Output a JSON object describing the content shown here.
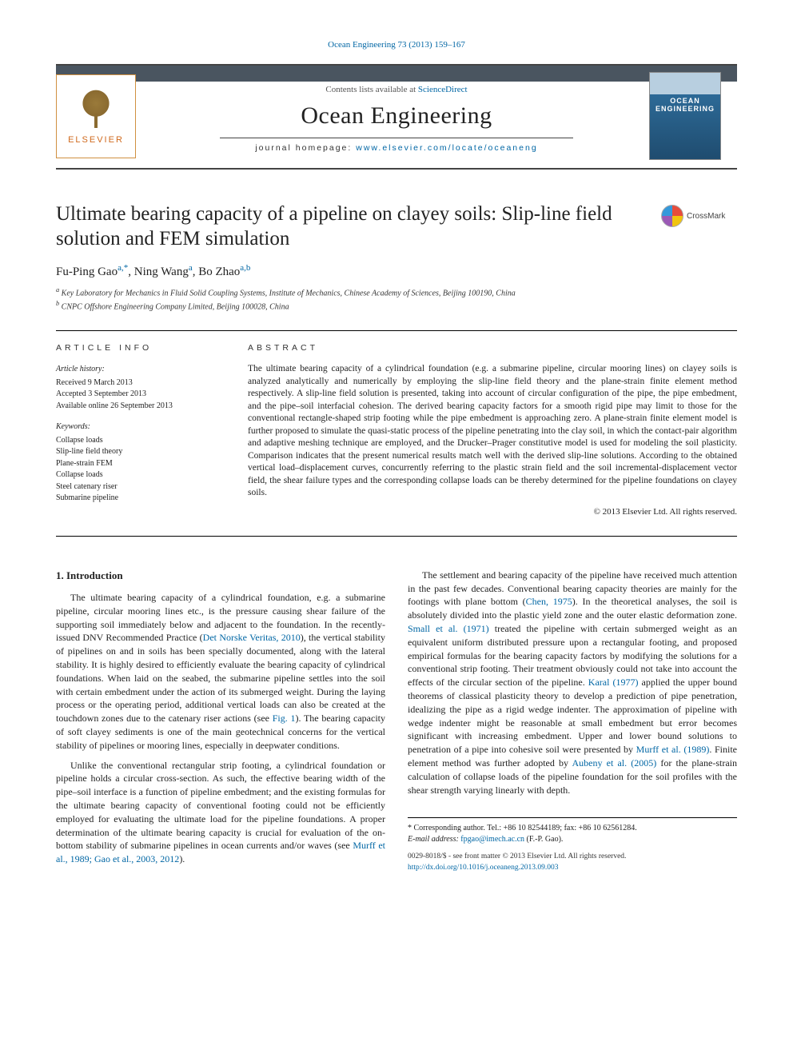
{
  "meta": {
    "top_citation_prefix": "Ocean Engineering 73 (2013) 159–167"
  },
  "banner": {
    "publisher": "ELSEVIER",
    "contents_prefix": "Contents lists available at ",
    "contents_link": "ScienceDirect",
    "journal_name": "Ocean Engineering",
    "homepage_label": "journal homepage: ",
    "homepage_url": "www.elsevier.com/locate/oceaneng",
    "cover_text": "OCEAN ENGINEERING",
    "banner_colors": {
      "stripe": "#4a5560",
      "publisher_color": "#d06a1e",
      "border": "#d09040",
      "cover_gradient_top": "#b8cfe0",
      "cover_gradient_bottom": "#1f4c6f",
      "link_color": "#0066a4"
    }
  },
  "crossmark": "CrossMark",
  "title": "Ultimate bearing capacity of a pipeline on clayey soils: Slip-line field solution and FEM simulation",
  "authors": {
    "a1": {
      "name": "Fu-Ping Gao",
      "aff": "a,",
      "corr": "*"
    },
    "a2": {
      "name": "Ning Wang",
      "aff": "a"
    },
    "a3": {
      "name": "Bo Zhao",
      "aff": "a,b"
    },
    "sep": ", "
  },
  "affiliations": {
    "a": "Key Laboratory for Mechanics in Fluid Solid Coupling Systems, Institute of Mechanics, Chinese Academy of Sciences, Beijing 100190, China",
    "b": "CNPC Offshore Engineering Company Limited, Beijing 100028, China"
  },
  "article_info": {
    "heading": "ARTICLE INFO",
    "history_hdr": "Article history:",
    "received": "Received 9 March 2013",
    "accepted": "Accepted 3 September 2013",
    "available": "Available online 26 September 2013",
    "keywords_hdr": "Keywords:",
    "keywords": [
      "Collapse loads",
      "Slip-line field theory",
      "Plane-strain FEM",
      "Collapse loads",
      "Steel catenary riser",
      "Submarine pipeline"
    ]
  },
  "abstract": {
    "heading": "ABSTRACT",
    "text": "The ultimate bearing capacity of a cylindrical foundation (e.g. a submarine pipeline, circular mooring lines) on clayey soils is analyzed analytically and numerically by employing the slip-line field theory and the plane-strain finite element method respectively. A slip-line field solution is presented, taking into account of circular configuration of the pipe, the pipe embedment, and the pipe–soil interfacial cohesion. The derived bearing capacity factors for a smooth rigid pipe may limit to those for the conventional rectangle-shaped strip footing while the pipe embedment is approaching zero. A plane-strain finite element model is further proposed to simulate the quasi-static process of the pipeline penetrating into the clay soil, in which the contact-pair algorithm and adaptive meshing technique are employed, and the Drucker–Prager constitutive model is used for modeling the soil plasticity. Comparison indicates that the present numerical results match well with the derived slip-line solutions. According to the obtained vertical load–displacement curves, concurrently referring to the plastic strain field and the soil incremental-displacement vector field, the shear failure types and the corresponding collapse loads can be thereby determined for the pipeline foundations on clayey soils.",
    "copyright": "© 2013 Elsevier Ltd. All rights reserved."
  },
  "body": {
    "section1_hdr": "1.  Introduction",
    "p1a": "The ultimate bearing capacity of a cylindrical foundation, e.g. a submarine pipeline, circular mooring lines etc., is the pressure causing shear failure of the supporting soil immediately below and adjacent to the foundation. In the recently-issued DNV Recommended Practice (",
    "p1_link1": "Det Norske Veritas, 2010",
    "p1b": "), the vertical stability of pipelines on and in soils has been specially documented, along with the lateral stability. It is highly desired to efficiently evaluate the bearing capacity of cylindrical foundations. When laid on the seabed, the submarine pipeline settles into the soil with certain embedment under the action of its submerged weight. During the laying process or the operating period, additional vertical loads can also be created at the touchdown zones due to the catenary riser actions (see ",
    "p1_link2": "Fig. 1",
    "p1c": "). The bearing capacity of soft clayey sediments is one of the main geotechnical concerns for the vertical stability of pipelines or mooring lines, especially in deepwater conditions.",
    "p2a": "Unlike the conventional rectangular strip footing, a cylindrical foundation or pipeline holds a circular cross-section. As such, the effective bearing width of the pipe–soil interface is a function of pipeline embedment; and the existing formulas for the ultimate bearing capacity of conventional footing could not be efficiently ",
    "p2b": "employed for evaluating the ultimate load for the pipeline foundations. A proper determination of the ultimate bearing capacity is crucial for evaluation of the on-bottom stability of submarine pipelines in ocean currents and/or waves (see ",
    "p2_link1": "Murff et al., 1989; Gao et al., 2003, 2012",
    "p2c": ").",
    "p3a": "The settlement and bearing capacity of the pipeline have received much attention in the past few decades. Conventional bearing capacity theories are mainly for the footings with plane bottom (",
    "p3_link1": "Chen, 1975",
    "p3b": "). In the theoretical analyses, the soil is absolutely divided into the plastic yield zone and the outer elastic deformation zone. ",
    "p3_link2": "Small et al. (1971)",
    "p3c": " treated the pipeline with certain submerged weight as an equivalent uniform distributed pressure upon a rectangular footing, and proposed empirical formulas for the bearing capacity factors by modifying the solutions for a conventional strip footing. Their treatment obviously could not take into account the effects of the circular section of the pipeline. ",
    "p3_link3": "Karal (1977)",
    "p3d": " applied the upper bound theorems of classical plasticity theory to develop a prediction of pipe penetration, idealizing the pipe as a rigid wedge indenter. The approximation of pipeline with wedge indenter might be reasonable at small embedment but error becomes significant with increasing embedment. Upper and lower bound solutions to penetration of a pipe into cohesive soil were presented by ",
    "p3_link4": "Murff et al. (1989)",
    "p3e": ". Finite element method was further adopted by ",
    "p3_link5": "Aubeny et al. (2005)",
    "p3f": " for the plane-strain calculation of collapse loads of the pipeline foundation for the soil profiles with the shear strength varying linearly with depth."
  },
  "footnote": {
    "corr_label": "* Corresponding author. Tel.: +86 10 82544189; fax: +86 10 62561284.",
    "email_label": "E-mail address: ",
    "email": "fpgao@imech.ac.cn",
    "email_suffix": " (F.-P. Gao)."
  },
  "footer": {
    "issn_line": "0029-8018/$ - see front matter © 2013 Elsevier Ltd. All rights reserved.",
    "doi": "http://dx.doi.org/10.1016/j.oceaneng.2013.09.003"
  }
}
